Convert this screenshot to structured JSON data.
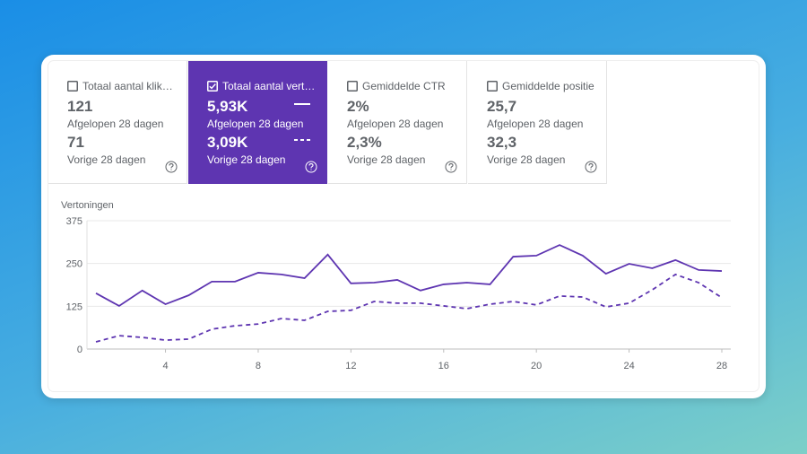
{
  "cards": [
    {
      "label": "Totaal aantal klik…",
      "current": "121",
      "current_label": "Afgelopen 28 dagen",
      "previous": "71",
      "previous_label": "Vorige 28 dagen",
      "selected": false
    },
    {
      "label": "Totaal aantal vert…",
      "current": "5,93K",
      "current_label": "Afgelopen 28 dagen",
      "previous": "3,09K",
      "previous_label": "Vorige 28 dagen",
      "selected": true
    },
    {
      "label": "Gemiddelde CTR",
      "current": "2%",
      "current_label": "Afgelopen 28 dagen",
      "previous": "2,3%",
      "previous_label": "Vorige 28 dagen",
      "selected": false
    },
    {
      "label": "Gemiddelde positie",
      "current": "25,7",
      "current_label": "Afgelopen 28 dagen",
      "previous": "32,3",
      "previous_label": "Vorige 28 dagen",
      "selected": false
    }
  ],
  "chart_data": {
    "type": "line",
    "y_label": "Vertoningen",
    "x": [
      1,
      2,
      3,
      4,
      5,
      6,
      7,
      8,
      9,
      10,
      11,
      12,
      13,
      14,
      15,
      16,
      17,
      18,
      19,
      20,
      21,
      22,
      23,
      24,
      25,
      26,
      27,
      28
    ],
    "xlim": [
      1,
      28
    ],
    "xticks": [
      4,
      8,
      12,
      16,
      20,
      24,
      28
    ],
    "ylim": [
      0,
      375
    ],
    "yticks": [
      0,
      125,
      250,
      375
    ],
    "grid": true,
    "series": [
      {
        "color": "#5e35b1",
        "dash": false,
        "values": [
          163,
          126,
          171,
          131,
          157,
          197,
          197,
          223,
          218,
          207,
          276,
          192,
          194,
          202,
          171,
          189,
          194,
          189,
          270,
          273,
          304,
          273,
          220,
          249,
          236,
          260,
          231,
          228
        ]
      },
      {
        "color": "#5e35b1",
        "dash": true,
        "values": [
          21,
          39,
          34,
          26,
          29,
          58,
          68,
          73,
          89,
          84,
          110,
          113,
          139,
          134,
          134,
          126,
          118,
          131,
          139,
          129,
          155,
          152,
          123,
          134,
          173,
          218,
          194,
          150
        ]
      }
    ]
  }
}
